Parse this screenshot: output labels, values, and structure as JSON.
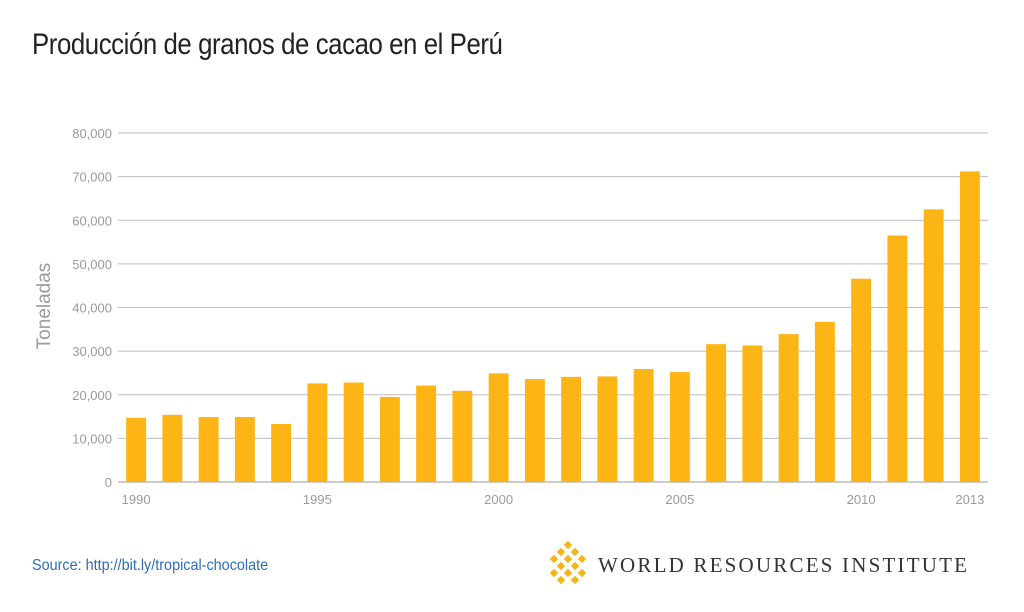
{
  "title": "Producción de granos de cacao en el Perú",
  "source": "Source: http://bit.ly/tropical-chocolate",
  "organization": "WORLD RESOURCES INSTITUTE",
  "logo_icon": "wri-logo-icon",
  "colors": {
    "bar": "#FDB515",
    "grid": "#bdbdbd",
    "axis_text": "#9b9b9b",
    "title": "#222222",
    "source": "#2e6db3",
    "logo": "#F2B51B"
  },
  "chart_data": {
    "type": "bar",
    "title": "Producción de granos de cacao en el Perú",
    "ylabel": "Toneladas",
    "xlabel": "",
    "categories": [
      "1990",
      "1991",
      "1992",
      "1993",
      "1994",
      "1995",
      "1996",
      "1997",
      "1998",
      "1999",
      "2000",
      "2001",
      "2002",
      "2003",
      "2004",
      "2005",
      "2006",
      "2007",
      "2008",
      "2009",
      "2010",
      "2011",
      "2012",
      "2013"
    ],
    "x_tick_labels": [
      "1990",
      "1995",
      "2000",
      "2005",
      "2010",
      "2013"
    ],
    "values": [
      14700,
      15400,
      14900,
      14900,
      13300,
      22600,
      22800,
      19500,
      22100,
      20900,
      24900,
      23600,
      24100,
      24200,
      25900,
      25200,
      31600,
      31300,
      33900,
      36700,
      46600,
      56500,
      62500,
      71200
    ],
    "yticks": [
      0,
      10000,
      20000,
      30000,
      40000,
      50000,
      60000,
      70000,
      80000
    ],
    "ytick_labels": [
      "0",
      "10,000",
      "20,000",
      "30,000",
      "40,000",
      "50,000",
      "60,000",
      "70,000",
      "80,000"
    ],
    "ylim": [
      0,
      80000
    ],
    "grid": true,
    "legend": "none"
  }
}
